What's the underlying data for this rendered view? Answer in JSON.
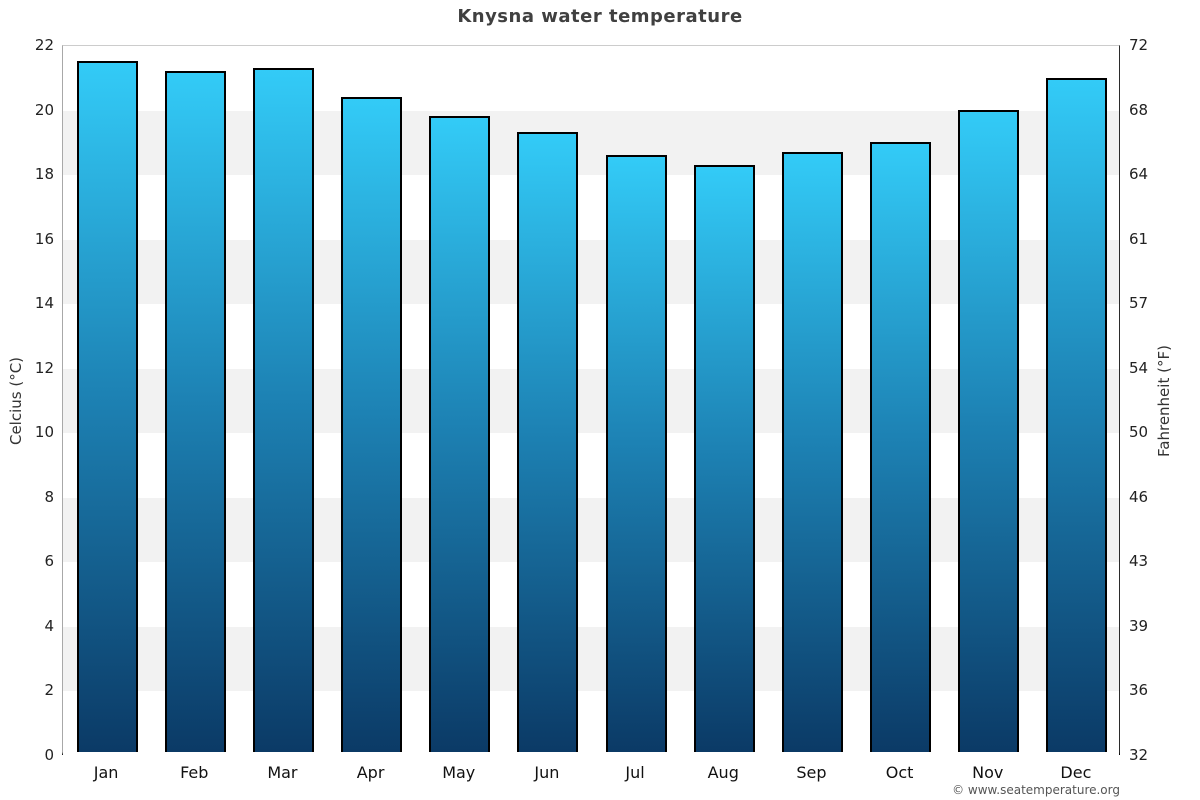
{
  "title": "Knysna water temperature",
  "footer": "© www.seatemperature.org",
  "chart_data": {
    "type": "bar",
    "title": "Knysna water temperature",
    "categories": [
      "Jan",
      "Feb",
      "Mar",
      "Apr",
      "May",
      "Jun",
      "Jul",
      "Aug",
      "Sep",
      "Oct",
      "Nov",
      "Dec"
    ],
    "values": [
      21.4,
      21.1,
      21.2,
      20.3,
      19.7,
      19.2,
      18.5,
      18.2,
      18.6,
      18.9,
      19.9,
      20.9
    ],
    "ylabel_left": "Celcius (°C)",
    "ylabel_right": "Fahrenheit (°F)",
    "ylim_celsius": [
      0,
      22
    ],
    "celsius_ticks": [
      0,
      2,
      4,
      6,
      8,
      10,
      12,
      14,
      16,
      18,
      20,
      22
    ],
    "fahrenheit_ticks": [
      32,
      36,
      39,
      43,
      46,
      50,
      54,
      57,
      61,
      64,
      68,
      72
    ],
    "grid": "alternating-horizontal-bands",
    "legend": "none",
    "colors": {
      "bar_gradient_top": "#33cbf7",
      "bar_gradient_mid": "#1d82b4",
      "bar_gradient_bottom": "#0b3a66",
      "bar_border": "#000000",
      "band_shade": "#f2f2f2",
      "band_light": "#ffffff",
      "title_text": "#404040",
      "axis_text": "#333333",
      "tick_text": "#222222",
      "footer_text": "#555555"
    }
  }
}
